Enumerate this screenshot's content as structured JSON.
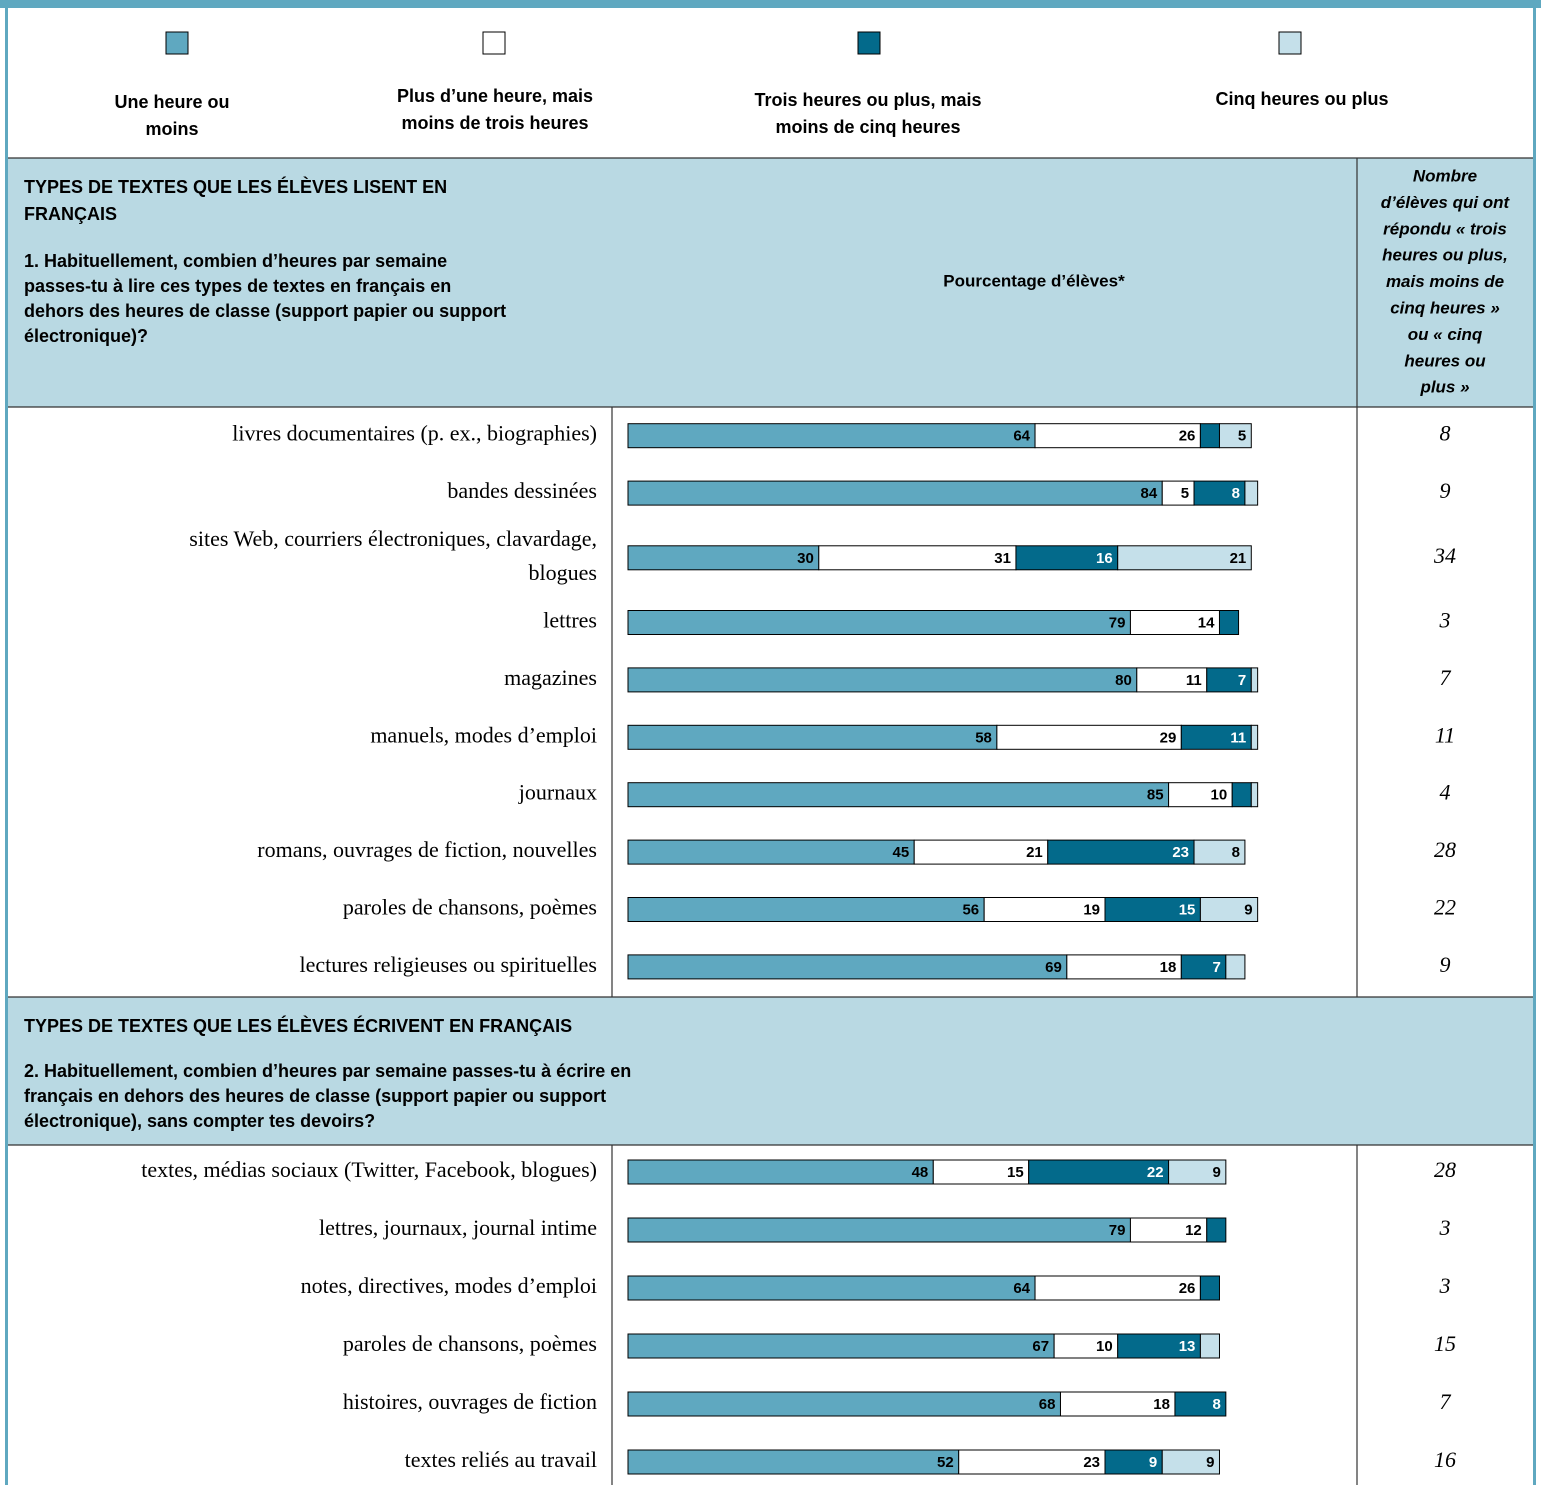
{
  "legend": [
    {
      "label": [
        "Une heure ou",
        "moins"
      ],
      "color": "#5fa8c0"
    },
    {
      "label": [
        "Plus d’une heure, mais",
        "moins de trois heures"
      ],
      "color": "#ffffff"
    },
    {
      "label": [
        "Trois heures ou plus, mais",
        "moins de cinq heures"
      ],
      "color": "#036a8b"
    },
    {
      "label": [
        "Cinq heures ou plus"
      ],
      "color": "#c5e0ea"
    }
  ],
  "percent_label": "Pourcentage d’élèves*",
  "count_label": [
    "Nombre",
    "d’élèves qui ont",
    "répondu « trois",
    "heures ou plus,",
    "mais moins de",
    "cinq heures »",
    "ou « cinq",
    "heures ou",
    "plus »"
  ],
  "sections": [
    {
      "title": [
        "TYPES DE TEXTES QUE LES ÉLÈVES LISENT EN",
        "FRANÇAIS"
      ],
      "question": [
        "1. Habituellement, combien d’heures par semaine",
        "passes-tu à lire ces types de textes en français en",
        "dehors des heures de classe (support papier ou support",
        "électronique)?"
      ],
      "rows": [
        {
          "label": [
            "livres documentaires (p. ex., biographies)"
          ],
          "values": [
            64,
            26,
            3,
            5
          ],
          "value_labels": [
            "64",
            "26",
            null,
            "5"
          ],
          "count": "8"
        },
        {
          "label": [
            "bandes dessinées"
          ],
          "values": [
            84,
            5,
            8,
            2
          ],
          "value_labels": [
            "84",
            "5",
            "8",
            null
          ],
          "count": "9"
        },
        {
          "label": [
            "sites Web, courriers électroniques, clavardage,",
            "blogues"
          ],
          "values": [
            30,
            31,
            16,
            21
          ],
          "value_labels": [
            "30",
            "31",
            "16",
            "21"
          ],
          "count": "34"
        },
        {
          "label": [
            "lettres"
          ],
          "values": [
            79,
            14,
            3,
            0
          ],
          "value_labels": [
            "79",
            "14",
            null,
            null
          ],
          "count": "3"
        },
        {
          "label": [
            "magazines"
          ],
          "values": [
            80,
            11,
            7,
            1
          ],
          "value_labels": [
            "80",
            "11",
            "7",
            null
          ],
          "count": "7"
        },
        {
          "label": [
            "manuels, modes d’emploi"
          ],
          "values": [
            58,
            29,
            11,
            1
          ],
          "value_labels": [
            "58",
            "29",
            "11",
            null
          ],
          "count": "11"
        },
        {
          "label": [
            "journaux"
          ],
          "values": [
            85,
            10,
            3,
            1
          ],
          "value_labels": [
            "85",
            "10",
            null,
            null
          ],
          "count": "4"
        },
        {
          "label": [
            "romans, ouvrages de fiction, nouvelles"
          ],
          "values": [
            45,
            21,
            23,
            8
          ],
          "value_labels": [
            "45",
            "21",
            "23",
            "8"
          ],
          "count": "28"
        },
        {
          "label": [
            "paroles de chansons, poèmes"
          ],
          "values": [
            56,
            19,
            15,
            9
          ],
          "value_labels": [
            "56",
            "19",
            "15",
            "9"
          ],
          "count": "22"
        },
        {
          "label": [
            "lectures religieuses ou spirituelles"
          ],
          "values": [
            69,
            18,
            7,
            3
          ],
          "value_labels": [
            "69",
            "18",
            "7",
            null
          ],
          "count": "9"
        }
      ]
    },
    {
      "title": [
        "TYPES DE TEXTES QUE LES ÉLÈVES ÉCRIVENT EN FRANÇAIS"
      ],
      "question": [
        "2. Habituellement, combien d’heures par semaine passes-tu à écrire en",
        "français en dehors des heures de classe (support papier ou support",
        "électronique), sans compter tes devoirs?"
      ],
      "rows": [
        {
          "label": [
            "textes, médias sociaux (Twitter, Facebook, blogues)"
          ],
          "values": [
            48,
            15,
            22,
            9
          ],
          "value_labels": [
            "48",
            "15",
            "22",
            "9"
          ],
          "count": "28"
        },
        {
          "label": [
            "lettres, journaux, journal intime"
          ],
          "values": [
            79,
            12,
            3,
            0
          ],
          "value_labels": [
            "79",
            "12",
            null,
            null
          ],
          "count": "3"
        },
        {
          "label": [
            "notes, directives, modes d’emploi"
          ],
          "values": [
            64,
            26,
            3,
            0
          ],
          "value_labels": [
            "64",
            "26",
            null,
            null
          ],
          "count": "3"
        },
        {
          "label": [
            "paroles de chansons, poèmes"
          ],
          "values": [
            67,
            10,
            13,
            3
          ],
          "value_labels": [
            "67",
            "10",
            "13",
            null
          ],
          "count": "15"
        },
        {
          "label": [
            "histoires, ouvrages de fiction"
          ],
          "values": [
            68,
            18,
            8,
            0
          ],
          "value_labels": [
            "68",
            "18",
            "8",
            null
          ],
          "count": "7"
        },
        {
          "label": [
            "textes reliés au travail"
          ],
          "values": [
            52,
            23,
            9,
            9
          ],
          "value_labels": [
            "52",
            "23",
            "9",
            "9"
          ],
          "count": "16"
        }
      ]
    }
  ]
}
